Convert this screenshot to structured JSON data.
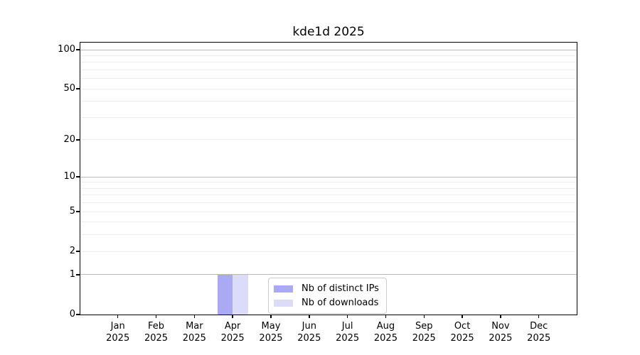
{
  "title": "kde1d 2025",
  "chart_data": {
    "type": "bar",
    "title": "kde1d 2025",
    "categories": [
      "Jan 2025",
      "Feb 2025",
      "Mar 2025",
      "Apr 2025",
      "May 2025",
      "Jun 2025",
      "Jul 2025",
      "Aug 2025",
      "Sep 2025",
      "Oct 2025",
      "Nov 2025",
      "Dec 2025"
    ],
    "series": [
      {
        "name": "Nb of distinct IPs",
        "color": "#a9a9f4",
        "values": [
          0,
          0,
          0,
          1,
          0,
          0,
          0,
          0,
          0,
          0,
          0,
          0
        ]
      },
      {
        "name": "Nb of downloads",
        "color": "#dcdcf9",
        "values": [
          0,
          0,
          0,
          1,
          0,
          0,
          0,
          0,
          0,
          0,
          0,
          0
        ]
      }
    ],
    "xlabel": "",
    "ylabel": "",
    "y_scale": "log1p",
    "ylim": [
      0,
      100
    ],
    "y_axis": {
      "labeled_ticks": [
        0,
        1,
        2,
        5,
        10,
        20,
        50,
        100
      ],
      "major_gridlines": [
        1,
        10,
        100
      ],
      "minor_gridlines": [
        2,
        3,
        4,
        5,
        6,
        7,
        8,
        9,
        20,
        30,
        40,
        50,
        60,
        70,
        80,
        90
      ]
    },
    "grid": true,
    "legend": {
      "position": "lower center inside plot",
      "entries": [
        {
          "label": "Nb of distinct IPs",
          "color": "#a9a9f4"
        },
        {
          "label": "Nb of downloads",
          "color": "#dcdcf9"
        }
      ]
    }
  },
  "colors": {
    "background": "#ffffff",
    "spine": "#000000",
    "major_grid": "#b9b9b9",
    "minor_grid": "#ededed",
    "bar_distinct_ips": "#a9a9f4",
    "bar_downloads": "#dcdcf9",
    "legend_border": "#cccccc",
    "text": "#000000"
  }
}
